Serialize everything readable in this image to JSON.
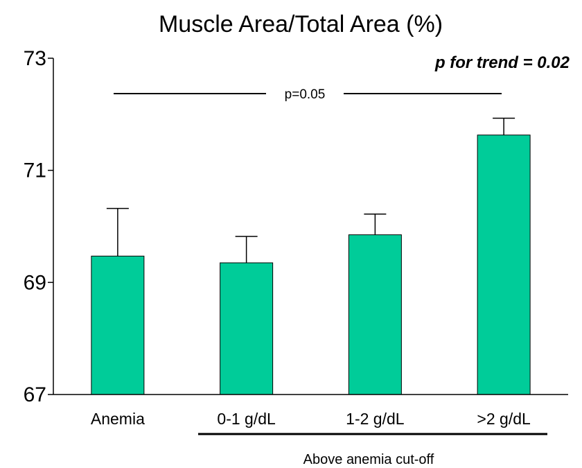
{
  "chart_data": {
    "type": "bar",
    "title": "Muscle Area/Total Area (%)",
    "categories": [
      "Anemia",
      "0-1 g/dL",
      "1-2 g/dL",
      ">2 g/dL"
    ],
    "values": [
      69.47,
      69.35,
      69.85,
      71.63
    ],
    "error_upper": [
      70.32,
      69.82,
      70.22,
      71.93
    ],
    "ylim": [
      67,
      73
    ],
    "yticks": [
      "67",
      "69",
      "71",
      "73"
    ],
    "bar_color": "#00cc99",
    "annotations": {
      "trend": "p for trend = 0.02",
      "comparison": "p=0.05",
      "group_label": "Above anemia cut-off"
    },
    "grid": false,
    "legend": "none"
  }
}
